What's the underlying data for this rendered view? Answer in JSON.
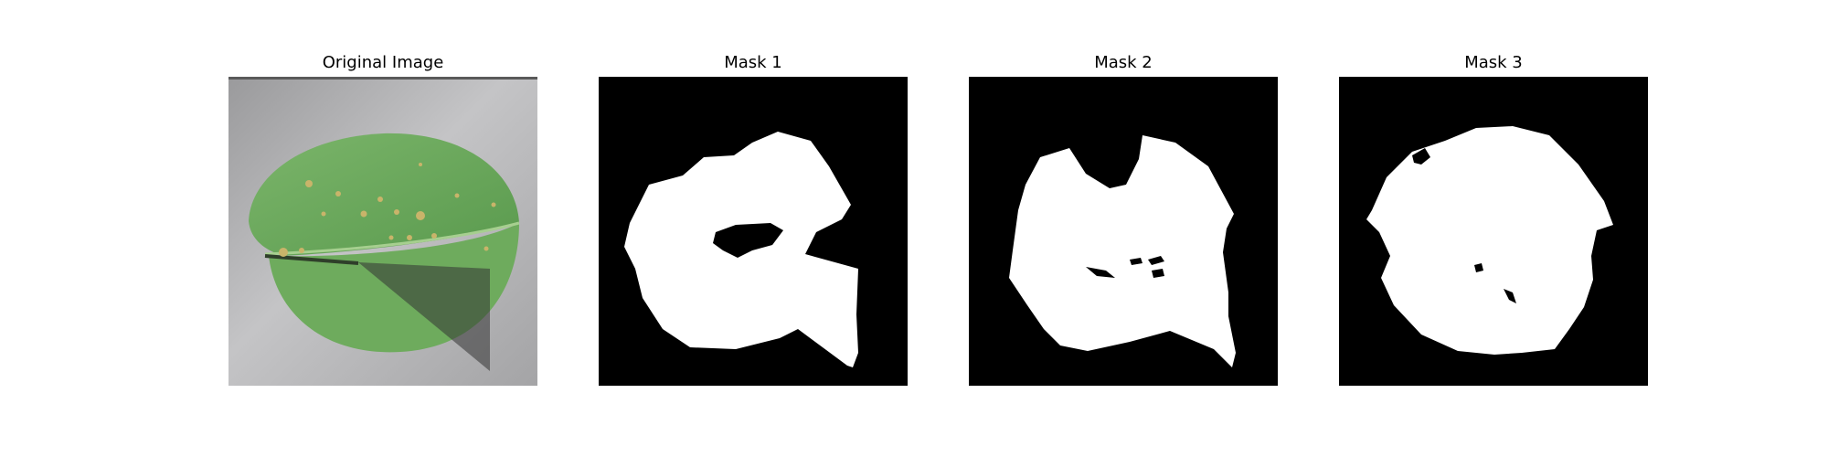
{
  "figure": {
    "panels": [
      {
        "title": "Original Image"
      },
      {
        "title": "Mask 1"
      },
      {
        "title": "Mask 2"
      },
      {
        "title": "Mask 3"
      }
    ]
  },
  "colors": {
    "background": "#ffffff",
    "mask_background": "#000000",
    "mask_foreground": "#ffffff",
    "leaf_green": "#6aa55a",
    "backdrop_gray": "#b2b2b4",
    "lesion_tan": "#c9b46a"
  }
}
